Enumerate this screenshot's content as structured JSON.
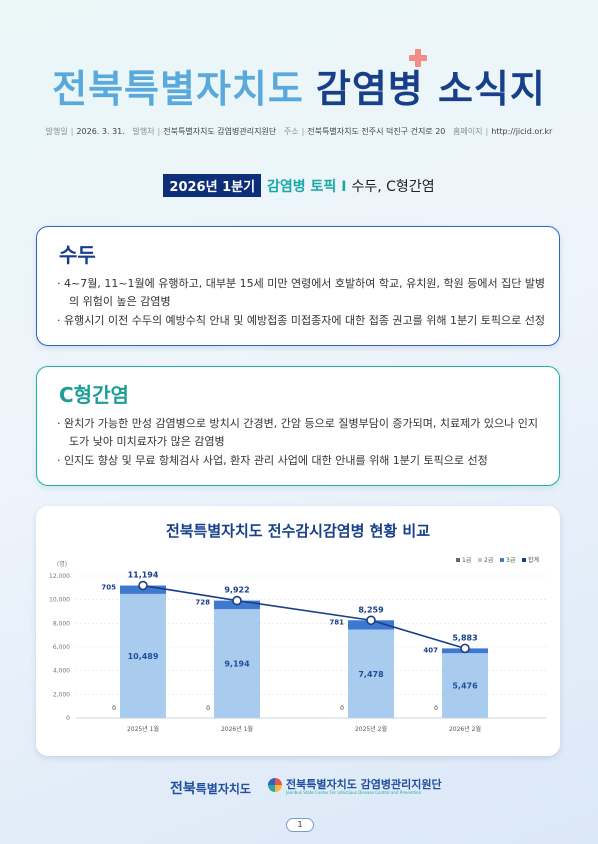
{
  "header": {
    "title_part1": "전북특별자치도",
    "title_part2": "감염병 소식지",
    "info": {
      "issue_date_label": "발행일",
      "issue_date": "2026. 3. 31.",
      "publisher_label": "발행처",
      "publisher": "전북특별자치도 감염병관리지원단",
      "address_label": "주소",
      "address": "전북특별자치도 전주시 덕진구 건지로 20",
      "homepage_label": "홈페이지",
      "homepage": "http://jicid.or.kr"
    }
  },
  "topic": {
    "quarter": "2026년 1분기",
    "category": "감염병 토픽 I",
    "subjects": "수두, C형간염"
  },
  "sections": [
    {
      "title": "수두",
      "bullets": [
        "· 4~7월, 11~1월에 유행하고, 대부분 15세 미만 연령에서 호발하여 학교, 유치원, 학원 등에서 집단 발병의 위험이 높은 감염병",
        "· 유행시기 이전 수두의 예방수칙 안내 및 예방접종 미접종자에 대한 접종 권고를 위해 1분기 토픽으로 선정"
      ]
    },
    {
      "title": "C형간염",
      "bullets": [
        "· 완치가 가능한 만성 감염병으로 방치시 간경변, 간암 등으로 질병부담이 증가되며, 치료제가 있으나 인지도가 낮아 미치료자가 많은 감염병",
        "· 인지도 향상 및 무료 항체검사 사업, 환자 관리 사업에 대한 안내를 위해 1분기 토픽으로 선정"
      ]
    }
  ],
  "chart_data": {
    "type": "bar",
    "title": "전북특별자치도 전수감시감염병 현황 비교",
    "ylabel": "(명)",
    "ylim": [
      0,
      12000
    ],
    "yticks": [
      "0",
      "2,000",
      "4,000",
      "6,000",
      "8,000",
      "10,000",
      "12,000"
    ],
    "ytick_values": [
      0,
      2000,
      4000,
      6000,
      8000,
      10000,
      12000
    ],
    "categories": [
      "2025년 1월",
      "2026년 1월",
      "2025년 2월",
      "2026년 2월"
    ],
    "legend_position": "top-right",
    "series": [
      {
        "name": "1급",
        "color": "#666666",
        "values": [
          0,
          0,
          0,
          0
        ],
        "labels": [
          "0",
          "0",
          "0",
          "0"
        ]
      },
      {
        "name": "2급",
        "color": "#a9cbee",
        "values": [
          10489,
          9194,
          7478,
          5476
        ],
        "labels": [
          "10,489",
          "9,194",
          "7,478",
          "5,476"
        ]
      },
      {
        "name": "3급",
        "color": "#3f79cf",
        "values": [
          705,
          728,
          781,
          407
        ],
        "labels": [
          "705",
          "728",
          "781",
          "407"
        ]
      },
      {
        "name": "합계",
        "color": "#173f8a",
        "values": [
          11194,
          9922,
          8259,
          5883
        ],
        "labels": [
          "11,194",
          "9,922",
          "8,259",
          "5,883"
        ]
      }
    ]
  },
  "footer": {
    "logo1_part1": "전북",
    "logo1_part2": "특별자치도",
    "logo2_name": "전북특별자치도 감염병관리지원단",
    "logo2_en": "Jeonbuk State Center For Infectious Disease Control and Prevention",
    "page_number": "1"
  },
  "colors": {
    "navy": "#173f8a",
    "light_blue": "#5aa9dc",
    "teal": "#1fb0a8",
    "accent_pink": "#f28c87"
  }
}
